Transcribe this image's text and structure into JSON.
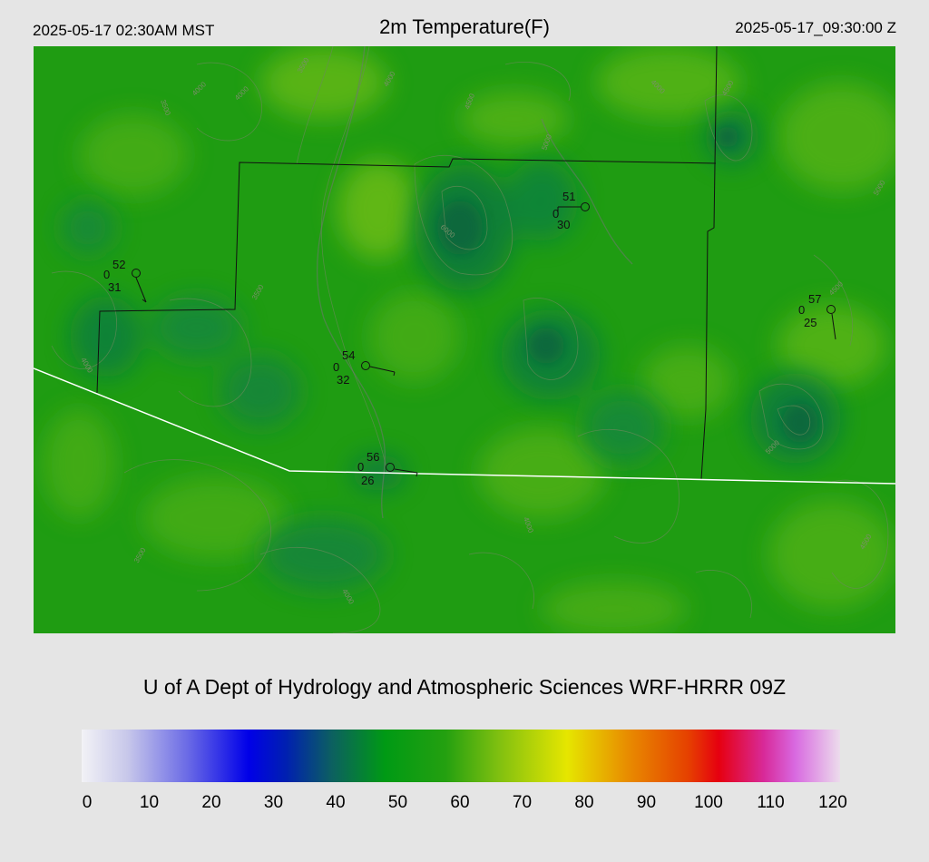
{
  "header": {
    "local_time": "2025-05-17 02:30AM MST",
    "title": "2m Temperature(F)",
    "utc_time": "2025-05-17_09:30:00 Z"
  },
  "map": {
    "base_color": "#1e9a10",
    "stations": [
      {
        "temp": "52",
        "dew": "31",
        "calm": "0"
      },
      {
        "temp": "51",
        "dew": "30",
        "calm": "0"
      },
      {
        "temp": "54",
        "dew": "32",
        "calm": "0"
      },
      {
        "temp": "56",
        "dew": "26",
        "calm": "0"
      },
      {
        "temp": "57",
        "dew": "25",
        "calm": "0"
      }
    ],
    "contour_labels": [
      "3500",
      "4000",
      "4000",
      "4000",
      "4500",
      "5000",
      "6000",
      "3500",
      "4000",
      "4500",
      "5000",
      "3500",
      "4000",
      "4500",
      "5000",
      "4000",
      "3500",
      "4000",
      "4500"
    ]
  },
  "credit": "U of A Dept of Hydrology and Atmospheric Sciences WRF-HRRR 09Z",
  "colorbar": {
    "ticks": [
      "0",
      "10",
      "20",
      "30",
      "40",
      "50",
      "60",
      "70",
      "80",
      "90",
      "100",
      "110",
      "120"
    ],
    "range": [
      0,
      120
    ]
  }
}
